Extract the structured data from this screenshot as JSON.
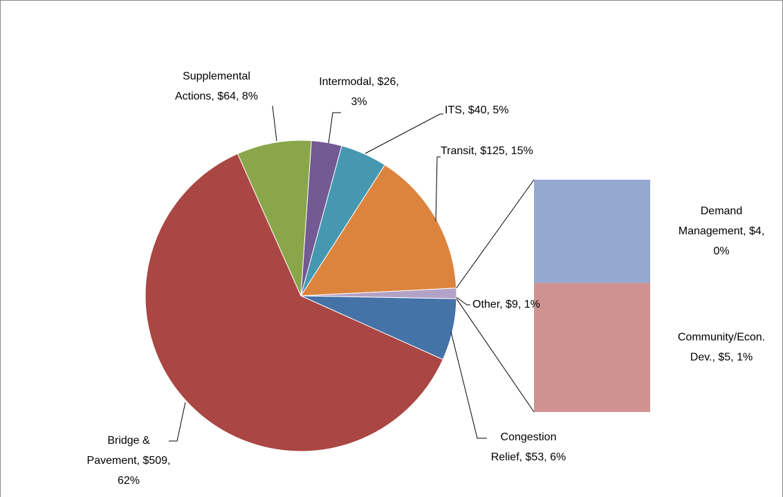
{
  "chart_data": {
    "type": "pie",
    "labels": [
      [
        "Supplemental",
        "Actions, $64, 8%"
      ],
      [
        "Intermodal, $26,",
        "3%"
      ],
      [
        "ITS, $40, 5%"
      ],
      [
        "Transit, $125, 15%"
      ],
      [
        "Other, $9, 1%"
      ],
      [
        "Congestion",
        "Relief, $53, 6%"
      ],
      [
        "Bridge &",
        "Pavement, $509,",
        "62%"
      ]
    ],
    "values": [
      64,
      26,
      40,
      125,
      9,
      53,
      509
    ],
    "colors": [
      "#8aa64b",
      "#735a92",
      "#4598b0",
      "#dc843e",
      "#b3a2c7",
      "#4572a7",
      "#aa4643"
    ],
    "secondary": {
      "labels": [
        [
          "Demand",
          "Management, $4,",
          "0%"
        ],
        [
          "Community/Econ.",
          "Dev., $5, 1%"
        ]
      ],
      "values": [
        4,
        5
      ],
      "colors": [
        "#95a9d0",
        "#d09290"
      ]
    }
  }
}
